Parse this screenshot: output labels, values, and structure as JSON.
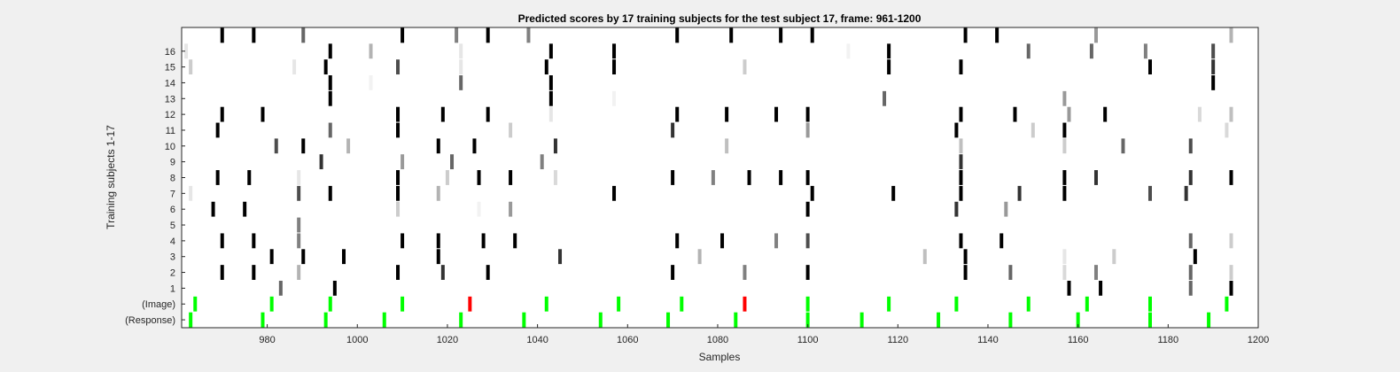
{
  "chart_data": {
    "type": "heatmap",
    "title": "Predicted scores by 17 training subjects for the test subject 17, frame: 961-1200",
    "xlabel": "Samples",
    "ylabel": "Training subjects 1-17",
    "xlim": [
      961,
      1200
    ],
    "x_ticks": [
      980,
      1000,
      1020,
      1040,
      1060,
      1080,
      1100,
      1120,
      1140,
      1160,
      1180,
      1200
    ],
    "rows": [
      "17",
      "16",
      "15",
      "14",
      "13",
      "12",
      "11",
      "10",
      "9",
      "8",
      "7",
      "6",
      "5",
      "4",
      "3",
      "2",
      "1",
      "(Image)",
      "(Response)"
    ],
    "y_tick_labels": [
      "16",
      "15",
      "14",
      "13",
      "12",
      "11",
      "10",
      "9",
      "8",
      "7",
      "6",
      "5",
      "4",
      "3",
      "2",
      "1",
      "(Image)",
      "(Response)"
    ],
    "cell_value_meaning": "grayscale intensity 0 (white) to 1 (black)",
    "subject_cells": [
      {
        "row": "17",
        "cells": [
          [
            970,
            1
          ],
          [
            977,
            1
          ],
          [
            988,
            0.6
          ],
          [
            1010,
            1
          ],
          [
            1022,
            0.5
          ],
          [
            1029,
            1
          ],
          [
            1038,
            0.5
          ],
          [
            1071,
            1
          ],
          [
            1083,
            1
          ],
          [
            1094,
            1
          ],
          [
            1101,
            1
          ],
          [
            1135,
            1
          ],
          [
            1142,
            1
          ],
          [
            1164,
            0.4
          ],
          [
            1194,
            0.3
          ]
        ]
      },
      {
        "row": "16",
        "cells": [
          [
            962,
            0.1
          ],
          [
            994,
            1
          ],
          [
            1003,
            0.3
          ],
          [
            1023,
            0.1
          ],
          [
            1043,
            1
          ],
          [
            1057,
            1
          ],
          [
            1109,
            0.05
          ],
          [
            1118,
            1
          ],
          [
            1149,
            0.6
          ],
          [
            1163,
            0.6
          ],
          [
            1175,
            0.5
          ],
          [
            1190,
            0.7
          ]
        ]
      },
      {
        "row": "15",
        "cells": [
          [
            963,
            0.2
          ],
          [
            986,
            0.1
          ],
          [
            993,
            1
          ],
          [
            1009,
            0.7
          ],
          [
            1023,
            0.1
          ],
          [
            1042,
            1
          ],
          [
            1057,
            1
          ],
          [
            1086,
            0.2
          ],
          [
            1118,
            1
          ],
          [
            1134,
            1
          ],
          [
            1176,
            1
          ],
          [
            1190,
            0.8
          ]
        ]
      },
      {
        "row": "14",
        "cells": [
          [
            994,
            1
          ],
          [
            1003,
            0.05
          ],
          [
            1023,
            0.6
          ],
          [
            1043,
            1
          ],
          [
            1190,
            1
          ]
        ]
      },
      {
        "row": "13",
        "cells": [
          [
            994,
            1
          ],
          [
            1043,
            1
          ],
          [
            1057,
            0.05
          ],
          [
            1117,
            0.6
          ],
          [
            1157,
            0.4
          ]
        ]
      },
      {
        "row": "12",
        "cells": [
          [
            970,
            1
          ],
          [
            979,
            1
          ],
          [
            1009,
            1
          ],
          [
            1019,
            1
          ],
          [
            1029,
            1
          ],
          [
            1043,
            0.1
          ],
          [
            1071,
            1
          ],
          [
            1082,
            1
          ],
          [
            1093,
            1
          ],
          [
            1100,
            1
          ],
          [
            1134,
            1
          ],
          [
            1146,
            1
          ],
          [
            1158,
            0.4
          ],
          [
            1166,
            1
          ],
          [
            1187,
            0.15
          ],
          [
            1194,
            0.25
          ]
        ]
      },
      {
        "row": "11",
        "cells": [
          [
            969,
            1
          ],
          [
            994,
            0.6
          ],
          [
            1009,
            1
          ],
          [
            1034,
            0.2
          ],
          [
            1070,
            0.8
          ],
          [
            1100,
            0.4
          ],
          [
            1133,
            1
          ],
          [
            1150,
            0.2
          ],
          [
            1157,
            1
          ],
          [
            1193,
            0.15
          ]
        ]
      },
      {
        "row": "10",
        "cells": [
          [
            982,
            0.7
          ],
          [
            988,
            1
          ],
          [
            998,
            0.3
          ],
          [
            1018,
            1
          ],
          [
            1026,
            1
          ],
          [
            1044,
            0.8
          ],
          [
            1082,
            0.25
          ],
          [
            1134,
            0.25
          ],
          [
            1157,
            0.2
          ],
          [
            1170,
            0.6
          ],
          [
            1185,
            0.7
          ]
        ]
      },
      {
        "row": "9",
        "cells": [
          [
            992,
            0.8
          ],
          [
            1010,
            0.4
          ],
          [
            1021,
            0.6
          ],
          [
            1041,
            0.5
          ],
          [
            1134,
            0.8
          ]
        ]
      },
      {
        "row": "8",
        "cells": [
          [
            969,
            1
          ],
          [
            976,
            1
          ],
          [
            987,
            0.1
          ],
          [
            1009,
            1
          ],
          [
            1020,
            0.2
          ],
          [
            1027,
            1
          ],
          [
            1034,
            1
          ],
          [
            1044,
            0.15
          ],
          [
            1070,
            1
          ],
          [
            1079,
            0.5
          ],
          [
            1087,
            1
          ],
          [
            1094,
            1
          ],
          [
            1100,
            1
          ],
          [
            1134,
            1
          ],
          [
            1157,
            1
          ],
          [
            1164,
            0.8
          ],
          [
            1185,
            0.8
          ],
          [
            1194,
            1
          ]
        ]
      },
      {
        "row": "7",
        "cells": [
          [
            963,
            0.1
          ],
          [
            987,
            0.7
          ],
          [
            994,
            1
          ],
          [
            1009,
            1
          ],
          [
            1018,
            0.3
          ],
          [
            1057,
            1
          ],
          [
            1101,
            1
          ],
          [
            1119,
            1
          ],
          [
            1134,
            1
          ],
          [
            1147,
            0.8
          ],
          [
            1157,
            1
          ],
          [
            1176,
            0.7
          ],
          [
            1184,
            0.8
          ]
        ]
      },
      {
        "row": "6",
        "cells": [
          [
            968,
            1
          ],
          [
            975,
            1
          ],
          [
            1009,
            0.2
          ],
          [
            1027,
            0.05
          ],
          [
            1034,
            0.4
          ],
          [
            1100,
            1
          ],
          [
            1133,
            0.8
          ],
          [
            1144,
            0.4
          ]
        ]
      },
      {
        "row": "5",
        "cells": [
          [
            987,
            0.5
          ]
        ]
      },
      {
        "row": "4",
        "cells": [
          [
            970,
            1
          ],
          [
            977,
            1
          ],
          [
            987,
            0.5
          ],
          [
            1010,
            1
          ],
          [
            1018,
            1
          ],
          [
            1028,
            1
          ],
          [
            1035,
            1
          ],
          [
            1071,
            1
          ],
          [
            1081,
            1
          ],
          [
            1093,
            0.5
          ],
          [
            1100,
            0.7
          ],
          [
            1134,
            1
          ],
          [
            1143,
            1
          ],
          [
            1185,
            0.6
          ],
          [
            1194,
            0.2
          ]
        ]
      },
      {
        "row": "3",
        "cells": [
          [
            981,
            1
          ],
          [
            988,
            1
          ],
          [
            997,
            1
          ],
          [
            1018,
            1
          ],
          [
            1045,
            0.8
          ],
          [
            1076,
            0.3
          ],
          [
            1126,
            0.25
          ],
          [
            1135,
            1
          ],
          [
            1157,
            0.1
          ],
          [
            1168,
            0.2
          ],
          [
            1186,
            1
          ]
        ]
      },
      {
        "row": "2",
        "cells": [
          [
            970,
            1
          ],
          [
            977,
            1
          ],
          [
            987,
            0.3
          ],
          [
            1009,
            1
          ],
          [
            1019,
            0.8
          ],
          [
            1029,
            1
          ],
          [
            1070,
            1
          ],
          [
            1086,
            0.5
          ],
          [
            1100,
            1
          ],
          [
            1135,
            1
          ],
          [
            1145,
            0.6
          ],
          [
            1157,
            0.15
          ],
          [
            1164,
            0.5
          ],
          [
            1185,
            0.6
          ],
          [
            1194,
            0.2
          ]
        ]
      },
      {
        "row": "1",
        "cells": [
          [
            983,
            0.6
          ],
          [
            995,
            1
          ],
          [
            1158,
            1
          ],
          [
            1165,
            1
          ],
          [
            1185,
            0.6
          ],
          [
            1194,
            1
          ]
        ]
      }
    ],
    "image_events": {
      "row": "(Image)",
      "green": [
        964,
        981,
        994,
        1010,
        1042,
        1058,
        1072,
        1100,
        1118,
        1133,
        1149,
        1162,
        1176,
        1193
      ],
      "red": [
        1025,
        1086
      ]
    },
    "response_events": {
      "row": "(Response)",
      "green": [
        963,
        979,
        993,
        1006,
        1023,
        1037,
        1054,
        1069,
        1084,
        1100,
        1112,
        1129,
        1145,
        1160,
        1176,
        1189
      ]
    },
    "colors": {
      "figure_bg": "#f0f0f0",
      "axes_bg": "#ffffff",
      "image_event": "#00ff00",
      "image_error": "#ff0000",
      "response_event": "#00ff00",
      "text": "#262626"
    }
  }
}
